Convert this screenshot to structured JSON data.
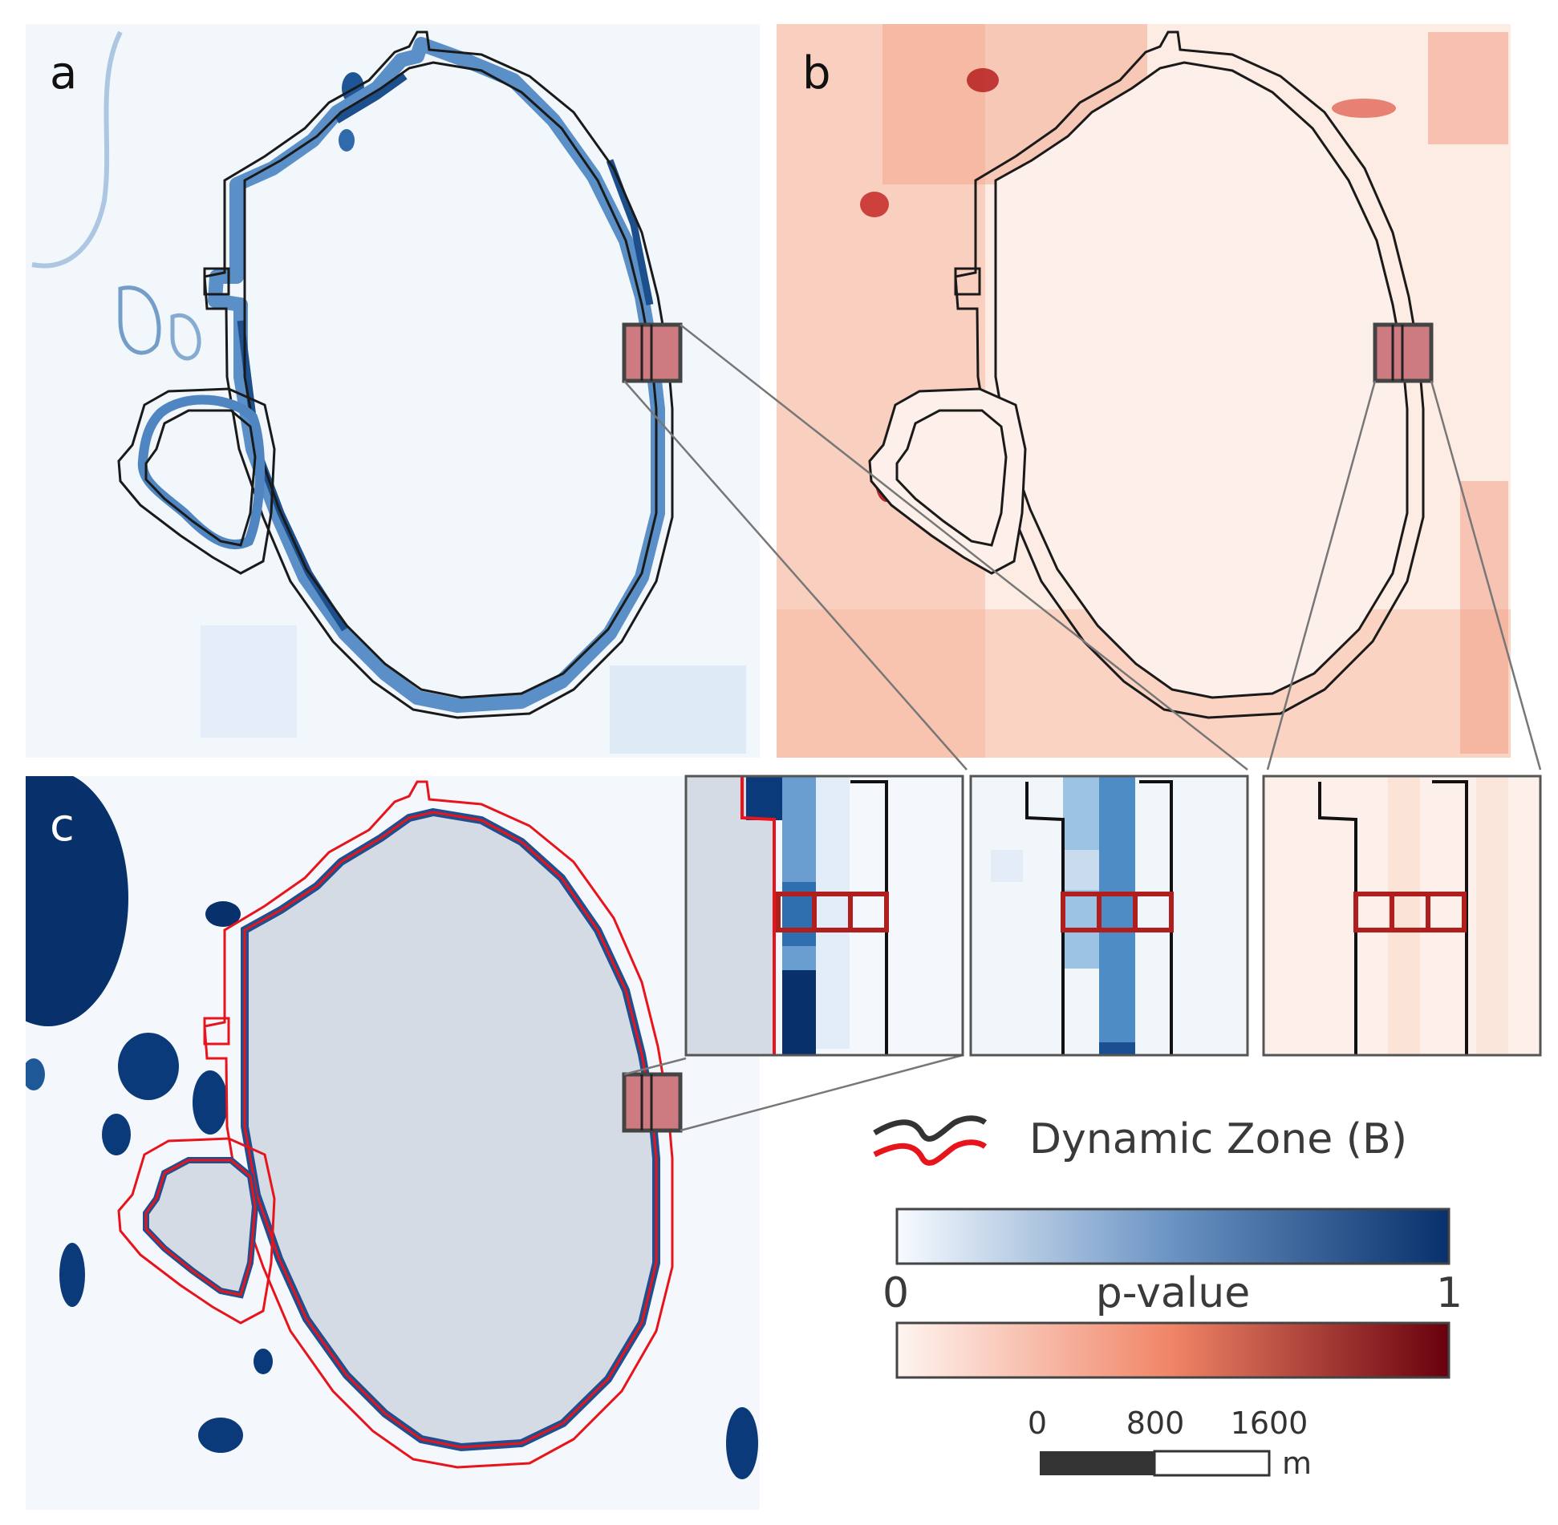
{
  "panels": {
    "a": {
      "letter": "a"
    },
    "b": {
      "letter": "b"
    },
    "c": {
      "letter": "c"
    }
  },
  "legend": {
    "zone_label": "Dynamic Zone (B)",
    "colorbar_title": "p-value",
    "colorbar_min": "0",
    "colorbar_max": "1",
    "blue_ramp": [
      "#f7fbff",
      "#08306b"
    ],
    "red_ramp": [
      "#fff5f0",
      "#67000d"
    ],
    "zone_colors": {
      "outline_a_b": "#222222",
      "outline_c": "#e8141b"
    }
  },
  "scalebar": {
    "ticks": [
      "0",
      "800",
      "1600"
    ],
    "unit": "m"
  }
}
